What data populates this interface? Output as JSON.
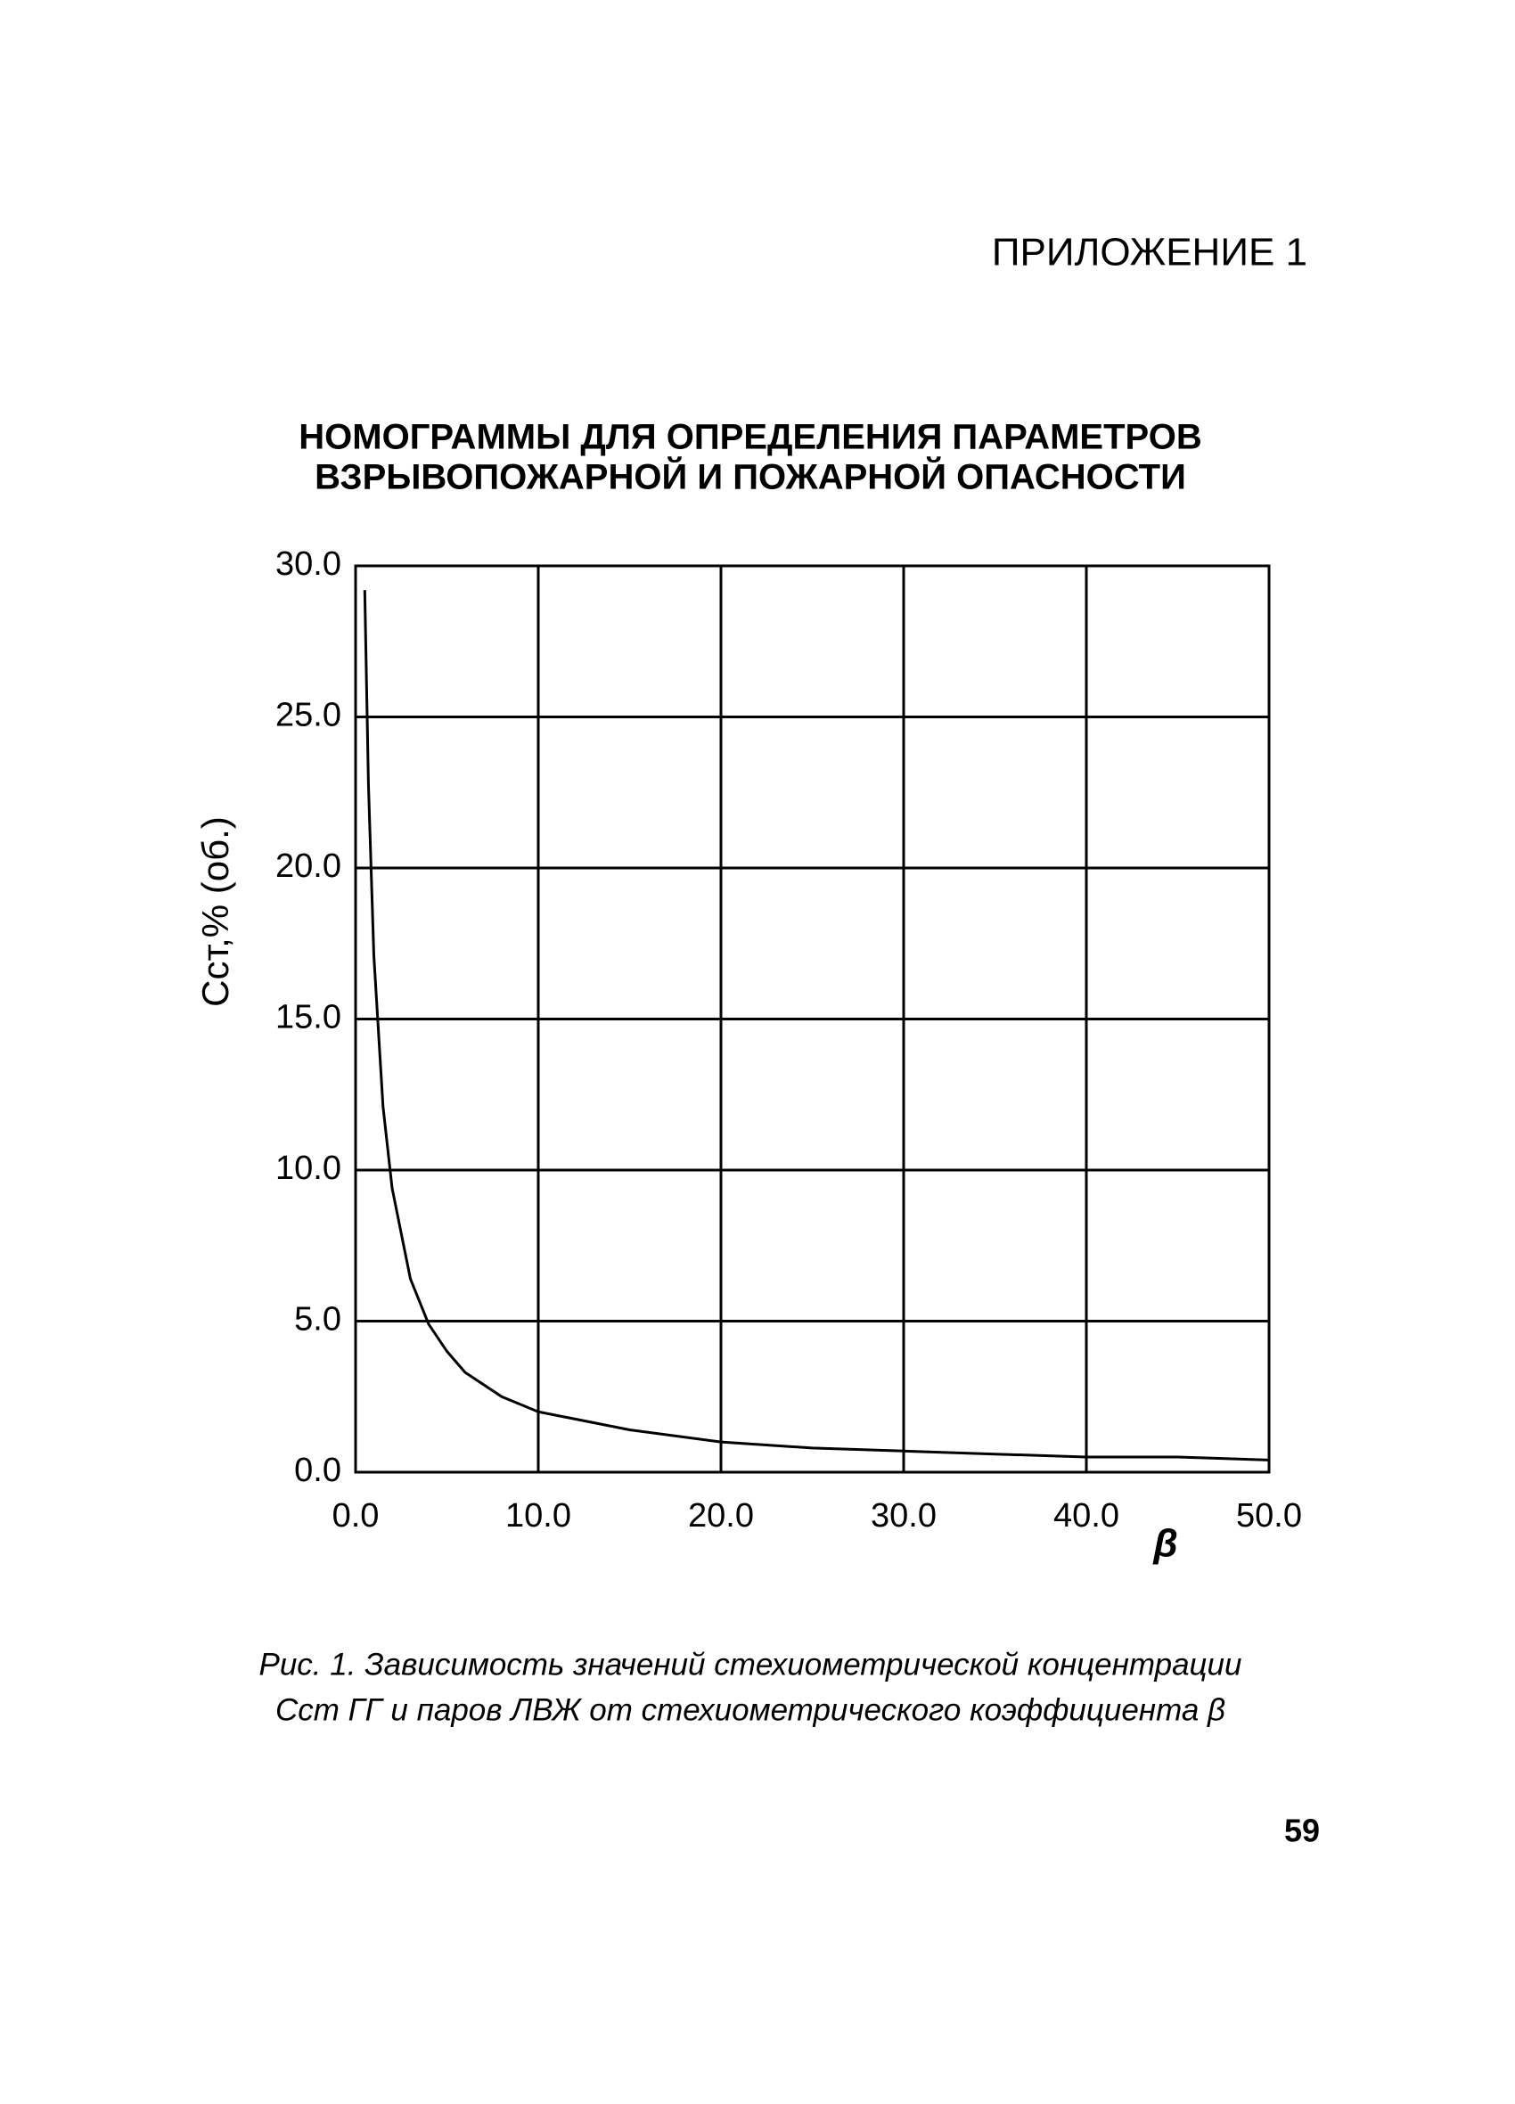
{
  "header": {
    "text": "ПРИЛОЖЕНИЕ 1"
  },
  "title": [
    "НОМОГРАММЫ ДЛЯ ОПРЕДЕЛЕНИЯ ПАРАМЕТРОВ",
    "ВЗРЫВОПОЖАРНОЙ И ПОЖАРНОЙ ОПАСНОСТИ"
  ],
  "chart_data": {
    "type": "line",
    "x_label": "β",
    "y_label": "Cст,% (об.)",
    "x": [
      0.5,
      0.7,
      1,
      1.5,
      2,
      3,
      4,
      5,
      6,
      8,
      10,
      15,
      20,
      25,
      30,
      35,
      40,
      45,
      50
    ],
    "series": [
      {
        "name": "Cст",
        "color": "#000000",
        "values": [
          29.2,
          22.8,
          17.1,
          12.1,
          9.4,
          6.4,
          4.9,
          4.0,
          3.3,
          2.5,
          2.0,
          1.4,
          1.0,
          0.8,
          0.7,
          0.6,
          0.5,
          0.5,
          0.4
        ]
      }
    ],
    "xlim": [
      0,
      50
    ],
    "ylim": [
      0,
      30
    ],
    "xticks": [
      {
        "value": 0,
        "label": "0.0"
      },
      {
        "value": 10,
        "label": "10.0"
      },
      {
        "value": 20,
        "label": "20.0"
      },
      {
        "value": 30,
        "label": "30.0"
      },
      {
        "value": 40,
        "label": "40.0"
      },
      {
        "value": 50,
        "label": "50.0"
      }
    ],
    "yticks": [
      {
        "value": 0,
        "label": "0.0"
      },
      {
        "value": 5,
        "label": "5.0"
      },
      {
        "value": 10,
        "label": "10.0"
      },
      {
        "value": 15,
        "label": "15.0"
      },
      {
        "value": 20,
        "label": "20.0"
      },
      {
        "value": 25,
        "label": "25.0"
      },
      {
        "value": 30,
        "label": "30.0"
      }
    ],
    "grid": true
  },
  "caption": [
    "Рис. 1. Зависимость  значений стехиометрической концентрации",
    "Cст  ГГ и паров ЛВЖ от стехиометрического коэффициента β"
  ],
  "page_number": "59"
}
